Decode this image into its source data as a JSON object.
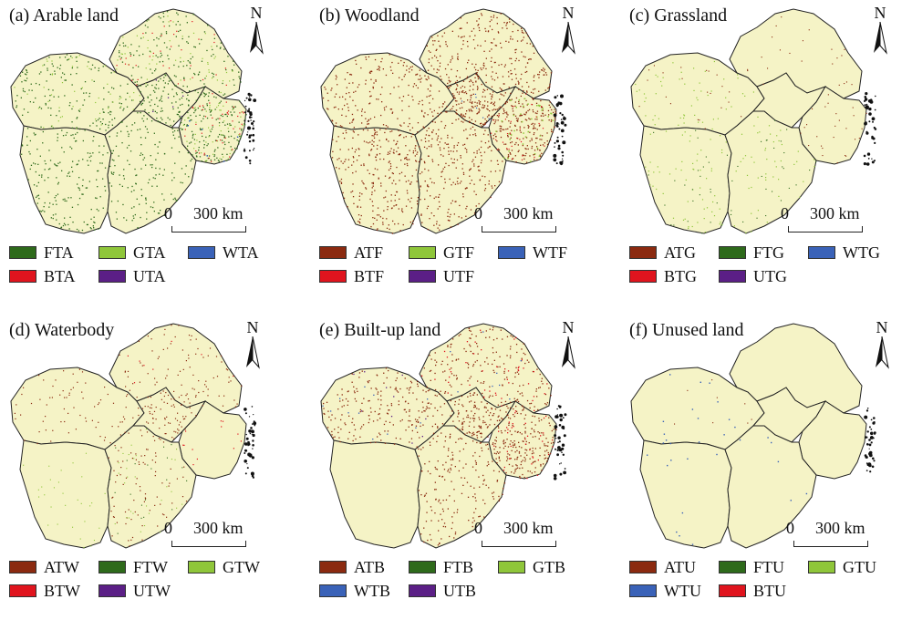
{
  "map": {
    "base_color": "#f5f3c6",
    "boundary_color": "#222222",
    "north_label": "N",
    "scale_zero": "0",
    "scale_label": "300 km"
  },
  "colors": {
    "brown": "#8b2a10",
    "dark_green": "#2e6a1b",
    "light_green": "#8fc63a",
    "blue": "#3a62b8",
    "red": "#e0141e",
    "purple": "#5b1f86"
  },
  "panels": [
    {
      "title": "(a) Arable land",
      "pattern": "arable",
      "legend": [
        {
          "label": "FTA",
          "color": "dark_green"
        },
        {
          "label": "GTA",
          "color": "light_green"
        },
        {
          "label": "WTA",
          "color": "blue"
        },
        {
          "label": "BTA",
          "color": "red"
        },
        {
          "label": "UTA",
          "color": "purple"
        }
      ]
    },
    {
      "title": "(b) Woodland",
      "pattern": "woodland",
      "legend": [
        {
          "label": "ATF",
          "color": "brown"
        },
        {
          "label": "GTF",
          "color": "light_green"
        },
        {
          "label": "WTF",
          "color": "blue"
        },
        {
          "label": "BTF",
          "color": "red"
        },
        {
          "label": "UTF",
          "color": "purple"
        }
      ]
    },
    {
      "title": "(c) Grassland",
      "pattern": "grassland",
      "legend": [
        {
          "label": "ATG",
          "color": "brown"
        },
        {
          "label": "FTG",
          "color": "dark_green"
        },
        {
          "label": "WTG",
          "color": "blue"
        },
        {
          "label": "BTG",
          "color": "red"
        },
        {
          "label": "UTG",
          "color": "purple"
        }
      ]
    },
    {
      "title": "(d) Waterbody",
      "pattern": "waterbody",
      "legend": [
        {
          "label": "ATW",
          "color": "brown"
        },
        {
          "label": "FTW",
          "color": "dark_green"
        },
        {
          "label": "GTW",
          "color": "light_green"
        },
        {
          "label": "BTW",
          "color": "red"
        },
        {
          "label": "UTW",
          "color": "purple"
        }
      ]
    },
    {
      "title": "(e) Built-up land",
      "pattern": "builtup",
      "legend": [
        {
          "label": "ATB",
          "color": "brown"
        },
        {
          "label": "FTB",
          "color": "dark_green"
        },
        {
          "label": "GTB",
          "color": "light_green"
        },
        {
          "label": "WTB",
          "color": "blue"
        },
        {
          "label": "UTB",
          "color": "purple"
        }
      ]
    },
    {
      "title": "(f) Unused land",
      "pattern": "unused",
      "legend": [
        {
          "label": "ATU",
          "color": "brown"
        },
        {
          "label": "FTU",
          "color": "dark_green"
        },
        {
          "label": "GTU",
          "color": "light_green"
        },
        {
          "label": "WTU",
          "color": "blue"
        },
        {
          "label": "BTU",
          "color": "red"
        }
      ]
    }
  ]
}
